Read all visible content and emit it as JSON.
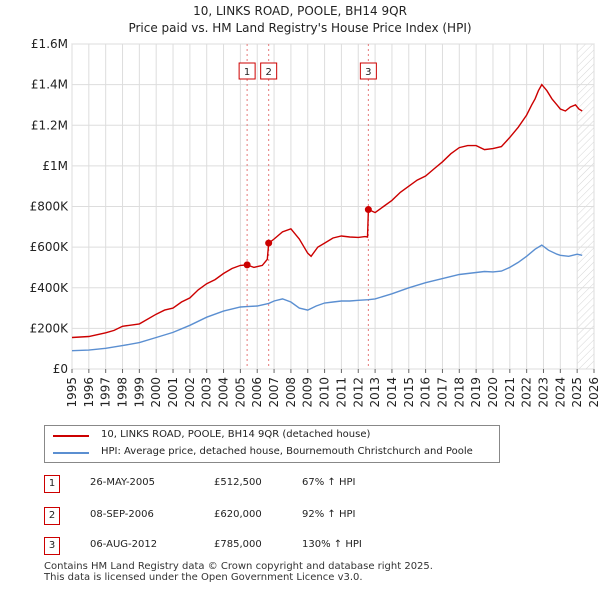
{
  "title_line1": "10, LINKS ROAD, POOLE, BH14 9QR",
  "title_line2": "Price paid vs. HM Land Registry's House Price Index (HPI)",
  "legend": {
    "property": "10, LINKS ROAD, POOLE, BH14 9QR (detached house)",
    "hpi": "HPI: Average price, detached house, Bournemouth Christchurch and Poole"
  },
  "colors": {
    "property": "#cc0000",
    "hpi": "#5b8fd1",
    "marker_line": "#e57a7a",
    "hatch": "#888888"
  },
  "transactions": [
    {
      "num": "1",
      "date": "26-MAY-2005",
      "price": "£512,500",
      "hpi": "67% ↑ HPI"
    },
    {
      "num": "2",
      "date": "08-SEP-2006",
      "price": "£620,000",
      "hpi": "92% ↑ HPI"
    },
    {
      "num": "3",
      "date": "06-AUG-2012",
      "price": "£785,000",
      "hpi": "130% ↑ HPI"
    }
  ],
  "footer_line1": "Contains HM Land Registry data © Crown copyright and database right 2025.",
  "footer_line2": "This data is licensed under the Open Government Licence v3.0.",
  "chart_data": {
    "type": "line",
    "title": "10, LINKS ROAD, POOLE, BH14 9QR — Price paid vs. HM Land Registry's House Price Index (HPI)",
    "xlim": [
      1995,
      2026
    ],
    "ylim": [
      0,
      1600000
    ],
    "yticks": [
      0,
      200000,
      400000,
      600000,
      800000,
      1000000,
      1200000,
      1400000,
      1600000
    ],
    "ytick_labels": [
      "£0",
      "£200K",
      "£400K",
      "£600K",
      "£800K",
      "£1M",
      "£1.2M",
      "£1.4M",
      "£1.6M"
    ],
    "xticks": [
      1995,
      1996,
      1997,
      1998,
      1999,
      2000,
      2001,
      2002,
      2003,
      2004,
      2005,
      2006,
      2007,
      2008,
      2009,
      2010,
      2011,
      2012,
      2013,
      2014,
      2015,
      2016,
      2017,
      2018,
      2019,
      2020,
      2021,
      2022,
      2023,
      2024,
      2025,
      2026
    ],
    "grid": true,
    "hatch_from": 2025.0,
    "sales": [
      {
        "label": "1",
        "x": 2005.4,
        "y": 512500
      },
      {
        "label": "2",
        "x": 2006.68,
        "y": 620000
      },
      {
        "label": "3",
        "x": 2012.6,
        "y": 785000
      }
    ],
    "series": [
      {
        "name": "10, LINKS ROAD, POOLE, BH14 9QR (detached house)",
        "x": [
          1995,
          1996,
          1997,
          1997.5,
          1998,
          1999,
          2000,
          2000.5,
          2001,
          2001.5,
          2002,
          2002.5,
          2003,
          2003.5,
          2004,
          2004.5,
          2005,
          2005.4,
          2005.8,
          2006.3,
          2006.6,
          2006.68,
          2007,
          2007.5,
          2008,
          2008.5,
          2009,
          2009.2,
          2009.6,
          2010,
          2010.5,
          2011,
          2011.5,
          2012,
          2012.4,
          2012.55,
          2012.6,
          2013,
          2013.5,
          2014,
          2014.5,
          2015,
          2015.5,
          2016,
          2016.5,
          2017,
          2017.5,
          2018,
          2018.5,
          2019,
          2019.5,
          2020,
          2020.5,
          2021,
          2021.5,
          2022,
          2022.3,
          2022.5,
          2022.7,
          2022.9,
          2023.2,
          2023.5,
          2023.8,
          2024,
          2024.3,
          2024.6,
          2024.9,
          2025.1,
          2025.3
        ],
        "y": [
          155000,
          160000,
          178000,
          190000,
          210000,
          222000,
          270000,
          290000,
          300000,
          330000,
          350000,
          390000,
          420000,
          440000,
          470000,
          495000,
          510000,
          512500,
          500000,
          510000,
          540000,
          620000,
          640000,
          675000,
          690000,
          640000,
          570000,
          555000,
          600000,
          620000,
          645000,
          655000,
          650000,
          648000,
          652000,
          650000,
          785000,
          770000,
          800000,
          830000,
          870000,
          900000,
          930000,
          950000,
          985000,
          1020000,
          1060000,
          1090000,
          1100000,
          1100000,
          1080000,
          1085000,
          1095000,
          1140000,
          1190000,
          1250000,
          1300000,
          1330000,
          1370000,
          1400000,
          1370000,
          1330000,
          1300000,
          1280000,
          1270000,
          1290000,
          1300000,
          1280000,
          1270000
        ]
      },
      {
        "name": "HPI: Average price, detached house, Bournemouth Christchurch and Poole",
        "x": [
          1995,
          1996,
          1997,
          1998,
          1999,
          2000,
          2001,
          2002,
          2003,
          2004,
          2005,
          2005.4,
          2006,
          2006.68,
          2007,
          2007.5,
          2008,
          2008.5,
          2009,
          2009.5,
          2010,
          2010.5,
          2011,
          2011.5,
          2012,
          2012.6,
          2013,
          2014,
          2015,
          2016,
          2017,
          2018,
          2019,
          2019.5,
          2020,
          2020.5,
          2021,
          2021.5,
          2022,
          2022.5,
          2022.9,
          2023.3,
          2023.8,
          2024,
          2024.5,
          2025,
          2025.3
        ],
        "y": [
          90000,
          93000,
          102000,
          115000,
          130000,
          155000,
          180000,
          215000,
          255000,
          285000,
          305000,
          307000,
          310000,
          323000,
          335000,
          345000,
          330000,
          300000,
          290000,
          310000,
          325000,
          330000,
          335000,
          335000,
          338000,
          341000,
          345000,
          370000,
          400000,
          425000,
          445000,
          465000,
          475000,
          480000,
          478000,
          482000,
          500000,
          525000,
          555000,
          590000,
          610000,
          585000,
          565000,
          560000,
          555000,
          565000,
          560000
        ]
      }
    ]
  }
}
